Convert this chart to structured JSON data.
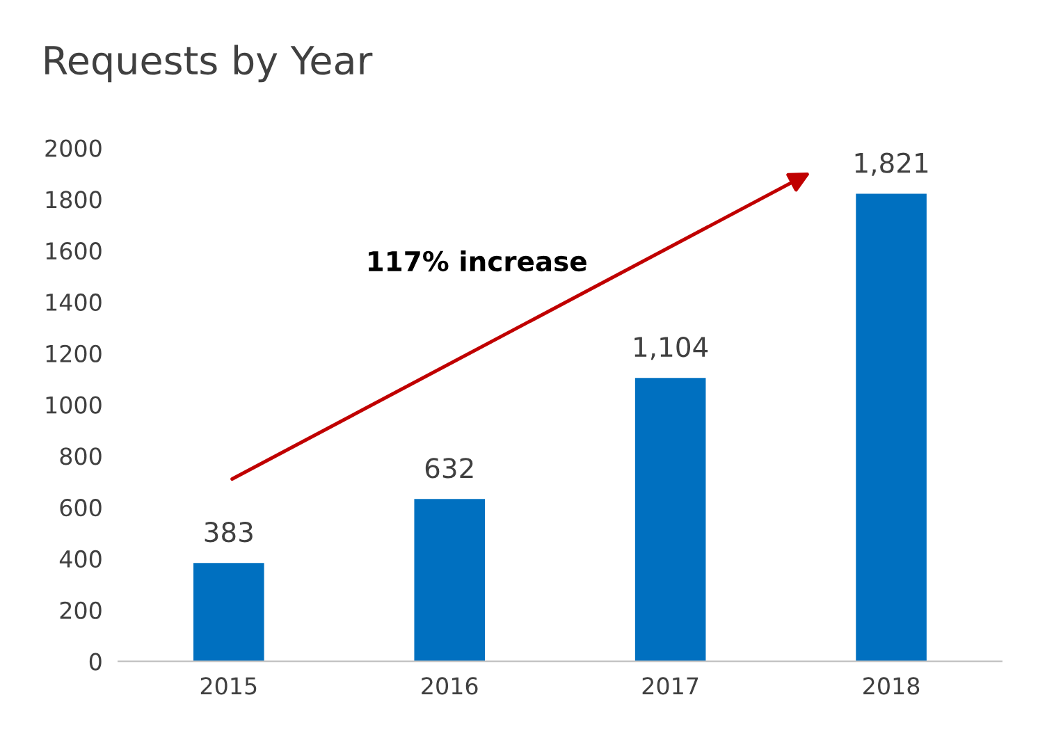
{
  "chart_data": {
    "type": "bar",
    "title": "Requests by Year",
    "categories": [
      "2015",
      "2016",
      "2017",
      "2018"
    ],
    "values": [
      383,
      632,
      1104,
      1821
    ],
    "value_labels": [
      "383",
      "632",
      "1,104",
      "1,821"
    ],
    "color": "#0070c0",
    "ylim": [
      0,
      2000
    ],
    "yticks": [
      0,
      200,
      400,
      600,
      800,
      1000,
      1200,
      1400,
      1600,
      1800,
      2000
    ],
    "grid": false,
    "legend": false,
    "annotations": [
      "117% increase"
    ]
  }
}
